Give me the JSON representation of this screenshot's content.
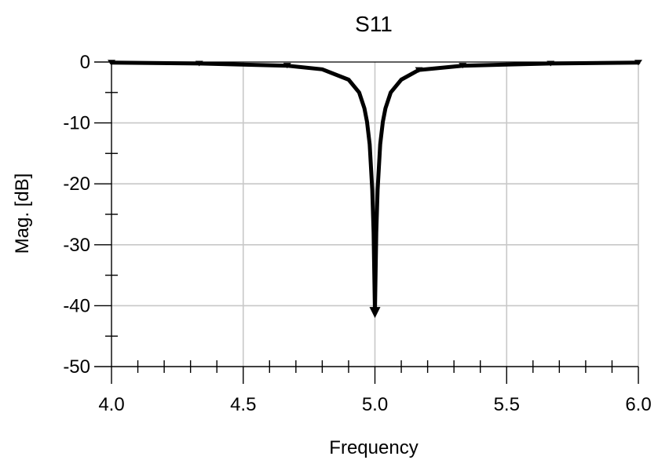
{
  "chart_data": {
    "type": "line",
    "title": "S11",
    "xlabel": "Frequency",
    "ylabel": "Mag. [dB]",
    "xlim": [
      4.0,
      6.0
    ],
    "ylim": [
      -50,
      0
    ],
    "x_ticks": [
      4.0,
      4.5,
      5.0,
      5.5,
      6.0
    ],
    "x_tick_labels": [
      "4.0",
      "4.5",
      "5.0",
      "5.5",
      "6.0"
    ],
    "y_ticks": [
      0,
      -10,
      -20,
      -30,
      -40,
      -50
    ],
    "y_tick_labels": [
      "0",
      "-10",
      "-20",
      "-30",
      "-40",
      "-50"
    ],
    "grid": true,
    "series": [
      {
        "color": "#000000",
        "x": [
          4.0,
          4.333,
          4.667,
          4.8,
          4.9,
          4.94,
          4.96,
          4.97,
          4.98,
          4.99,
          4.995,
          5.0,
          5.005,
          5.01,
          5.02,
          5.03,
          5.04,
          5.06,
          5.1,
          5.167,
          5.333,
          5.667,
          6.0
        ],
        "y": [
          -0.1,
          -0.25,
          -0.6,
          -1.2,
          -2.9,
          -5.0,
          -7.6,
          -9.8,
          -13.5,
          -21.0,
          -28.0,
          -41.0,
          -28.0,
          -21.0,
          -13.5,
          -9.8,
          -7.6,
          -5.0,
          -2.9,
          -1.3,
          -0.6,
          -0.25,
          -0.1
        ]
      }
    ],
    "markers_x": [
      4.0,
      4.333,
      4.667,
      5.0,
      5.167,
      5.333,
      5.667,
      6.0
    ]
  }
}
